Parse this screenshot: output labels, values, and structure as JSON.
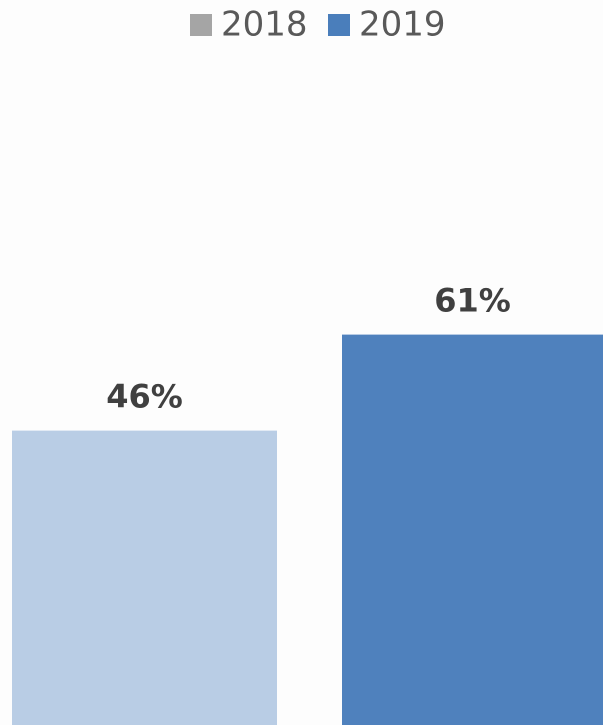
{
  "chart_data": {
    "type": "bar",
    "series": [
      {
        "name": "2018",
        "legend_color": "#a5a5a5",
        "color": "#b9cde5",
        "values": [
          46
        ],
        "value_labels": [
          "46%"
        ]
      },
      {
        "name": "2019",
        "legend_color": "#4a7ebb",
        "color": "#4f81bd",
        "values": [
          61
        ],
        "value_labels": [
          "61%"
        ]
      }
    ]
  }
}
